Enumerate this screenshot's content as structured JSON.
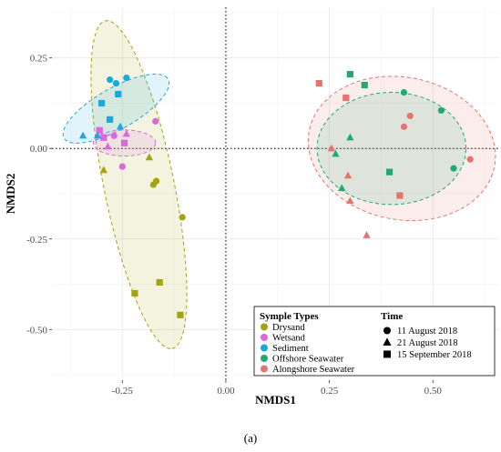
{
  "chart_data": {
    "type": "scatter",
    "xlabel": "NMDS1",
    "ylabel": "NMDS2",
    "xlim": [
      -0.42,
      0.66
    ],
    "ylim": [
      -0.64,
      0.39
    ],
    "x_ticks": [
      -0.25,
      0.0,
      0.25,
      0.5
    ],
    "x_tick_labels": [
      "-0.25",
      "0.00",
      "0.25",
      "0.50"
    ],
    "y_ticks": [
      -0.5,
      -0.25,
      0.0,
      0.25
    ],
    "y_tick_labels": [
      "-0.50",
      "-0.25",
      "0.00",
      "0.25"
    ],
    "grid": true,
    "reference_lines": [
      {
        "axis": "x",
        "value": 0
      },
      {
        "axis": "y",
        "value": 0
      }
    ],
    "legend_position": "bottom-right",
    "panel_label": "(a)",
    "sample_types": {
      "title": "Symple Types",
      "entries": [
        {
          "name": "Drysand",
          "color": "#a3a313"
        },
        {
          "name": "Wetsand",
          "color": "#dd66dd"
        },
        {
          "name": "Sediment",
          "color": "#1aa8dd"
        },
        {
          "name": "Offshore Seawater",
          "color": "#1eaa72"
        },
        {
          "name": "Alongshore Seawater",
          "color": "#e3756e"
        }
      ]
    },
    "time": {
      "title": "Time",
      "entries": [
        {
          "name": "11 August 2018",
          "shape": "circle"
        },
        {
          "name": "21 August 2018",
          "shape": "triangle"
        },
        {
          "name": "15 September  2018",
          "shape": "square"
        }
      ]
    },
    "ellipses": [
      {
        "group": "Drysand",
        "cx": -0.21,
        "cy": -0.1,
        "rx": 0.46,
        "ry": 0.085,
        "angle": -80
      },
      {
        "group": "Sediment",
        "cx": -0.265,
        "cy": 0.11,
        "rx": 0.15,
        "ry": 0.055,
        "angle": 34
      },
      {
        "group": "Wetsand",
        "cx": -0.245,
        "cy": 0.015,
        "rx": 0.075,
        "ry": 0.036,
        "angle": 0
      },
      {
        "group": "Alongshore Seawater",
        "cx": 0.425,
        "cy": 0.0,
        "rx": 0.23,
        "ry": 0.195,
        "angle": -20
      },
      {
        "group": "Offshore Seawater",
        "cx": 0.4,
        "cy": 0.0,
        "rx": 0.18,
        "ry": 0.155,
        "angle": 0
      }
    ],
    "points": [
      {
        "group": "Drysand",
        "time": "11 August 2018",
        "x": -0.175,
        "y": -0.1
      },
      {
        "group": "Drysand",
        "time": "11 August 2018",
        "x": -0.168,
        "y": -0.09
      },
      {
        "group": "Drysand",
        "time": "11 August 2018",
        "x": -0.105,
        "y": -0.19
      },
      {
        "group": "Drysand",
        "time": "21 August 2018",
        "x": -0.295,
        "y": -0.06
      },
      {
        "group": "Drysand",
        "time": "21 August 2018",
        "x": -0.185,
        "y": -0.025
      },
      {
        "group": "Drysand",
        "time": "15 September  2018",
        "x": -0.22,
        "y": -0.4
      },
      {
        "group": "Drysand",
        "time": "15 September  2018",
        "x": -0.16,
        "y": -0.37
      },
      {
        "group": "Drysand",
        "time": "15 September  2018",
        "x": -0.11,
        "y": -0.46
      },
      {
        "group": "Wetsand",
        "time": "11 August 2018",
        "x": -0.27,
        "y": 0.035
      },
      {
        "group": "Wetsand",
        "time": "11 August 2018",
        "x": -0.25,
        "y": -0.05
      },
      {
        "group": "Wetsand",
        "time": "11 August 2018",
        "x": -0.17,
        "y": 0.075
      },
      {
        "group": "Wetsand",
        "time": "21 August 2018",
        "x": -0.285,
        "y": 0.005
      },
      {
        "group": "Wetsand",
        "time": "21 August 2018",
        "x": -0.24,
        "y": 0.04
      },
      {
        "group": "Wetsand",
        "time": "15 September  2018",
        "x": -0.305,
        "y": 0.05
      },
      {
        "group": "Wetsand",
        "time": "15 September  2018",
        "x": -0.295,
        "y": 0.03
      },
      {
        "group": "Wetsand",
        "time": "15 September  2018",
        "x": -0.245,
        "y": 0.015
      },
      {
        "group": "Sediment",
        "time": "11 August 2018",
        "x": -0.28,
        "y": 0.19
      },
      {
        "group": "Sediment",
        "time": "11 August 2018",
        "x": -0.265,
        "y": 0.18
      },
      {
        "group": "Sediment",
        "time": "11 August 2018",
        "x": -0.24,
        "y": 0.195
      },
      {
        "group": "Sediment",
        "time": "21 August 2018",
        "x": -0.345,
        "y": 0.035
      },
      {
        "group": "Sediment",
        "time": "21 August 2018",
        "x": -0.31,
        "y": 0.035
      },
      {
        "group": "Sediment",
        "time": "21 August 2018",
        "x": -0.255,
        "y": 0.06
      },
      {
        "group": "Sediment",
        "time": "15 September  2018",
        "x": -0.3,
        "y": 0.125
      },
      {
        "group": "Sediment",
        "time": "15 September  2018",
        "x": -0.28,
        "y": 0.08
      },
      {
        "group": "Sediment",
        "time": "15 September  2018",
        "x": -0.26,
        "y": 0.15
      },
      {
        "group": "Offshore Seawater",
        "time": "11 August 2018",
        "x": 0.43,
        "y": 0.155
      },
      {
        "group": "Offshore Seawater",
        "time": "11 August 2018",
        "x": 0.52,
        "y": 0.105
      },
      {
        "group": "Offshore Seawater",
        "time": "11 August 2018",
        "x": 0.55,
        "y": -0.055
      },
      {
        "group": "Offshore Seawater",
        "time": "21 August 2018",
        "x": 0.3,
        "y": 0.03
      },
      {
        "group": "Offshore Seawater",
        "time": "21 August 2018",
        "x": 0.265,
        "y": -0.015
      },
      {
        "group": "Offshore Seawater",
        "time": "21 August 2018",
        "x": 0.28,
        "y": -0.11
      },
      {
        "group": "Offshore Seawater",
        "time": "15 September  2018",
        "x": 0.3,
        "y": 0.205
      },
      {
        "group": "Offshore Seawater",
        "time": "15 September  2018",
        "x": 0.335,
        "y": 0.175
      },
      {
        "group": "Offshore Seawater",
        "time": "15 September  2018",
        "x": 0.395,
        "y": -0.065
      },
      {
        "group": "Alongshore Seawater",
        "time": "11 August 2018",
        "x": 0.43,
        "y": 0.06
      },
      {
        "group": "Alongshore Seawater",
        "time": "11 August 2018",
        "x": 0.445,
        "y": 0.09
      },
      {
        "group": "Alongshore Seawater",
        "time": "11 August 2018",
        "x": 0.59,
        "y": -0.03
      },
      {
        "group": "Alongshore Seawater",
        "time": "21 August 2018",
        "x": 0.255,
        "y": 0.0
      },
      {
        "group": "Alongshore Seawater",
        "time": "21 August 2018",
        "x": 0.295,
        "y": -0.075
      },
      {
        "group": "Alongshore Seawater",
        "time": "21 August 2018",
        "x": 0.3,
        "y": -0.145
      },
      {
        "group": "Alongshore Seawater",
        "time": "21 August 2018",
        "x": 0.34,
        "y": -0.24
      },
      {
        "group": "Alongshore Seawater",
        "time": "15 September  2018",
        "x": 0.225,
        "y": 0.18
      },
      {
        "group": "Alongshore Seawater",
        "time": "15 September  2018",
        "x": 0.29,
        "y": 0.14
      },
      {
        "group": "Alongshore Seawater",
        "time": "15 September  2018",
        "x": 0.42,
        "y": -0.13
      }
    ]
  }
}
